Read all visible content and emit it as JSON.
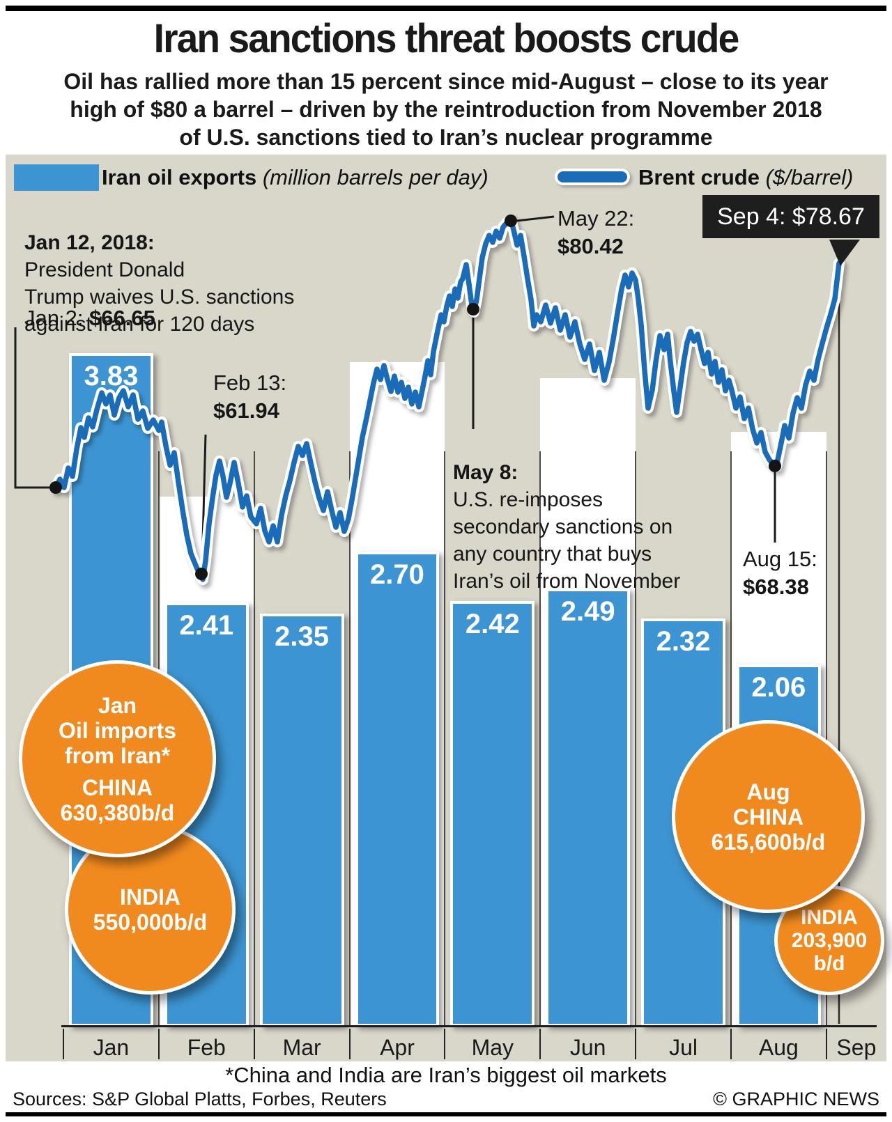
{
  "header": {
    "title": "Iran sanctions threat boosts crude",
    "subtitle": "Oil has rallied more than 15 percent since mid-August – close to its year\nhigh of $80 a barrel – driven by the reintroduction from November 2018\nof U.S. sanctions tied to Iran’s nuclear programme"
  },
  "legend": {
    "bar_label": "Iran oil exports",
    "bar_unit": "(million barrels per day)",
    "line_label": "Brent crude",
    "line_unit": "($/barrel)"
  },
  "chart_data": {
    "type": "bar",
    "subtype": "bar+line combo",
    "categories": [
      "Jan",
      "Feb",
      "Mar",
      "Apr",
      "May",
      "Jun",
      "Jul",
      "Aug",
      "Sep"
    ],
    "series": [
      {
        "name": "Iran oil exports",
        "type": "bar",
        "unit": "million barrels per day",
        "values": [
          3.83,
          2.41,
          2.35,
          2.7,
          2.42,
          2.49,
          2.32,
          2.06,
          null
        ],
        "labels": [
          "3.83",
          "2.41",
          "2.35",
          "2.70",
          "2.42",
          "2.49",
          "2.32",
          "2.06"
        ]
      },
      {
        "name": "Brent crude",
        "type": "line",
        "unit": "$/barrel",
        "key_points": [
          {
            "date": "Jan 2",
            "value": 66.65
          },
          {
            "date": "Feb 13",
            "value": 61.94
          },
          {
            "date": "May 22",
            "value": 80.42
          },
          {
            "date": "Aug 15",
            "value": 68.38
          },
          {
            "date": "Sep 4",
            "value": 78.67
          }
        ]
      }
    ],
    "title": "Iran sanctions threat boosts crude",
    "xlabel": "",
    "ylabel": "",
    "grid": "alternating white month stripes on beige",
    "legend_position": "top"
  },
  "annotations": {
    "jan12": {
      "lead": "Jan 12, 2018:",
      "body": "President Donald\nTrump waives U.S. sanctions\nagainst Iran for 120 days"
    },
    "jan2": {
      "label": "Jan 2: ",
      "value": "$66.65"
    },
    "feb13": {
      "label": "Feb 13:",
      "value": "$61.94"
    },
    "may22": {
      "label": "May 22:",
      "value": "$80.42"
    },
    "may8": {
      "lead": "May 8:",
      "body": "U.S. re-imposes\nsecondary sanctions on\nany country that buys\nIran’s oil from November"
    },
    "aug15": {
      "label": "Aug 15:",
      "value": "$68.38"
    },
    "sep4": {
      "label": "Sep 4: ",
      "value": "$78.67"
    }
  },
  "import_circles": {
    "jan": {
      "period": "Jan",
      "title_line1": "Oil imports",
      "title_line2": "from Iran*",
      "china_label": "CHINA",
      "china_value": "630,380b/d",
      "india_label": "INDIA",
      "india_value": "550,000b/d"
    },
    "aug": {
      "period": "Aug",
      "china_label": "CHINA",
      "china_value": "615,600b/d",
      "india_label": "INDIA",
      "india_value": "203,900",
      "india_value_unit": "b/d"
    }
  },
  "footer": {
    "footnote": "*China and India are Iran’s biggest oil markets",
    "sources": "Sources: S&P Global Platts, Forbes, Reuters",
    "credit": "© GRAPHIC NEWS"
  },
  "colors": {
    "bar_blue": "#3C95D2",
    "line_blue": "#1A6CB8",
    "panel_beige": "#D9D6CA",
    "stripe_white": "#FFFFFF",
    "orange": "#F18A1E",
    "bubble_black": "#1E1E1E",
    "text_black": "#111111"
  }
}
